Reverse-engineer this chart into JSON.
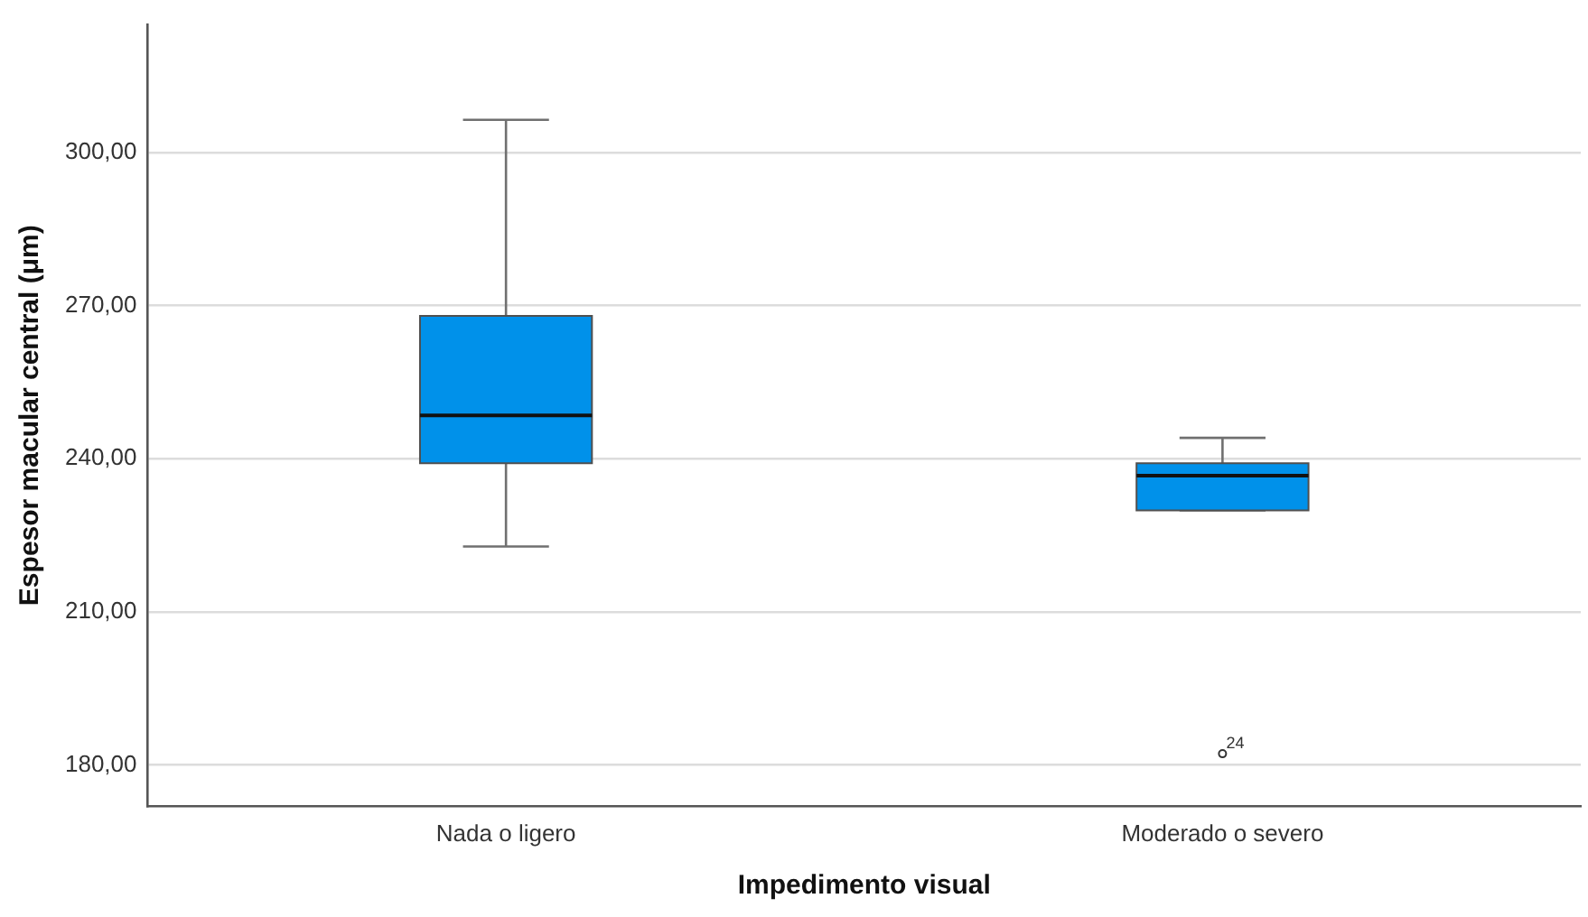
{
  "chart_data": {
    "type": "box",
    "xlabel": "Impedimento visual",
    "ylabel": "Espesor macular central (μm)",
    "categories": [
      "Nada o ligero",
      "Moderado o severo"
    ],
    "color": "#0091ea",
    "boxes": [
      {
        "low": 222.8,
        "q1": 239.1,
        "median": 248.5,
        "q3": 268,
        "high": 306.4
      },
      {
        "low": 229.9,
        "q1": 229.9,
        "median": 236.7,
        "q3": 239.1,
        "high": 244.1,
        "outliers": [
          182.2
        ]
      }
    ],
    "ylim": [
      172,
      325
    ],
    "yticks": [
      {
        "value": 180,
        "label": "180,00"
      },
      {
        "value": 210,
        "label": "210,00"
      },
      {
        "value": 240,
        "label": "240,00"
      },
      {
        "value": 270,
        "label": "270,00"
      },
      {
        "value": 300,
        "label": "300,00"
      }
    ],
    "grid": "y",
    "annotations": [
      "24"
    ]
  }
}
